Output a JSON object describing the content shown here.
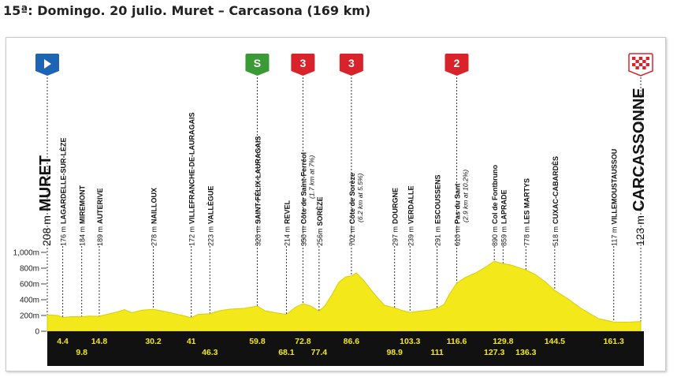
{
  "page_title": "15ª: Domingo. 20 julio. Muret – Carcasona (169 km)",
  "colors": {
    "profile_fill": "#f2e81a",
    "profile_edge": "#d8cc10",
    "ground_band": "#111111",
    "km_text": "#f2e81a",
    "start_marker": "#1e64b4",
    "finish_marker": "#d8232a",
    "sprint_marker": "#3b9a35",
    "climb_marker": "#d8232a"
  },
  "chart_data": {
    "type": "area",
    "title": "15ª: Domingo. 20 julio. Muret – Carcasona (169 km)",
    "xlabel": "",
    "ylabel": "",
    "xlim": [
      0,
      169
    ],
    "ylim": [
      0,
      1000
    ],
    "y_ticks": [
      "0",
      "200m",
      "400m",
      "600m",
      "800m",
      "1,000m"
    ],
    "y_tick_values": [
      0,
      200,
      400,
      600,
      800,
      1000
    ],
    "grid": false,
    "profile": [
      [
        0,
        208
      ],
      [
        3,
        200
      ],
      [
        4.4,
        176
      ],
      [
        7,
        185
      ],
      [
        9.8,
        184
      ],
      [
        12,
        192
      ],
      [
        14.8,
        189
      ],
      [
        17,
        215
      ],
      [
        20,
        245
      ],
      [
        22,
        275
      ],
      [
        24,
        235
      ],
      [
        27,
        268
      ],
      [
        30.2,
        278
      ],
      [
        33,
        255
      ],
      [
        36,
        225
      ],
      [
        39,
        195
      ],
      [
        41,
        172
      ],
      [
        43,
        215
      ],
      [
        46.3,
        223
      ],
      [
        49,
        260
      ],
      [
        52,
        280
      ],
      [
        56,
        290
      ],
      [
        59.8,
        320
      ],
      [
        62,
        260
      ],
      [
        65,
        235
      ],
      [
        68.1,
        214
      ],
      [
        70.5,
        300
      ],
      [
        72.8,
        350
      ],
      [
        75,
        320
      ],
      [
        77.4,
        256
      ],
      [
        79,
        320
      ],
      [
        81,
        460
      ],
      [
        83,
        620
      ],
      [
        85,
        690
      ],
      [
        86.6,
        702
      ],
      [
        88,
        740
      ],
      [
        90,
        650
      ],
      [
        93,
        480
      ],
      [
        96,
        330
      ],
      [
        98.9,
        297
      ],
      [
        101,
        265
      ],
      [
        103.3,
        239
      ],
      [
        106,
        255
      ],
      [
        109,
        270
      ],
      [
        111,
        291
      ],
      [
        113,
        340
      ],
      [
        114.5,
        470
      ],
      [
        116.6,
        610
      ],
      [
        119,
        680
      ],
      [
        122,
        740
      ],
      [
        125,
        820
      ],
      [
        127.3,
        890
      ],
      [
        128.6,
        870
      ],
      [
        129.8,
        859
      ],
      [
        132,
        840
      ],
      [
        134,
        810
      ],
      [
        136.3,
        778
      ],
      [
        139,
        720
      ],
      [
        142,
        620
      ],
      [
        144.5,
        518
      ],
      [
        148,
        420
      ],
      [
        152,
        290
      ],
      [
        157,
        160
      ],
      [
        161.3,
        117
      ],
      [
        165,
        115
      ],
      [
        169,
        123
      ]
    ],
    "towns": [
      {
        "km": 0,
        "alt": 208,
        "name": "MURET",
        "alt_label": "208 m",
        "kind": "start",
        "km_label": ""
      },
      {
        "km": 4.4,
        "alt": 176,
        "name": "LAGARDELLE-SUR-LÈZE",
        "alt_label": "176 m",
        "kind": "town",
        "km_label": "4.4",
        "km_row": "top"
      },
      {
        "km": 9.8,
        "alt": 184,
        "name": "MIREMONT",
        "alt_label": "184 m",
        "kind": "town",
        "km_label": "9.8",
        "km_row": "bottom"
      },
      {
        "km": 14.8,
        "alt": 189,
        "name": "AUTERIVE",
        "alt_label": "189 m",
        "kind": "town",
        "km_label": "14.8",
        "km_row": "top"
      },
      {
        "km": 30.2,
        "alt": 278,
        "name": "NAILLOUX",
        "alt_label": "278 m",
        "kind": "town",
        "km_label": "30.2",
        "km_row": "top"
      },
      {
        "km": 41,
        "alt": 172,
        "name": "VILLEFRANCHE-DE-LAURAGAIS",
        "alt_label": "172 m",
        "kind": "town",
        "km_label": "41",
        "km_row": "top"
      },
      {
        "km": 46.3,
        "alt": 223,
        "name": "VALLÈGUE",
        "alt_label": "223 m",
        "kind": "town",
        "km_label": "46.3",
        "km_row": "bottom"
      },
      {
        "km": 59.8,
        "alt": 320,
        "name": "SAINT-FÉLIX-LAURAGAIS",
        "alt_label": "320 m",
        "kind": "sprint",
        "km_label": "59.8",
        "km_row": "top"
      },
      {
        "km": 68.1,
        "alt": 214,
        "name": "REVEL",
        "alt_label": "214 m",
        "kind": "town",
        "km_label": "68.1",
        "km_row": "bottom"
      },
      {
        "km": 72.8,
        "alt": 350,
        "name": "Côte de Saint-Ferréol",
        "alt_label": "350 m",
        "detail": "(1.7 km at 7%)",
        "kind": "climb3",
        "km_label": "72.8",
        "km_row": "top"
      },
      {
        "km": 77.4,
        "alt": 256,
        "name": "SORÈZE",
        "alt_label": "256m",
        "kind": "town",
        "km_label": "77.4",
        "km_row": "bottom"
      },
      {
        "km": 86.6,
        "alt": 702,
        "name": "Côte de Sorèze",
        "alt_label": "702 m",
        "detail": "(6.2 km at 5.5%)",
        "kind": "climb3",
        "km_label": "86.6",
        "km_row": "top"
      },
      {
        "km": 98.9,
        "alt": 297,
        "name": "DOURGNE",
        "alt_label": "297 m",
        "kind": "town",
        "km_label": "98.9",
        "km_row": "bottom"
      },
      {
        "km": 103.3,
        "alt": 239,
        "name": "VERDALLE",
        "alt_label": "239 m",
        "kind": "town",
        "km_label": "103.3",
        "km_row": "top"
      },
      {
        "km": 111,
        "alt": 291,
        "name": "ESCOUSSENS",
        "alt_label": "291 m",
        "kind": "town",
        "km_label": "111",
        "km_row": "bottom"
      },
      {
        "km": 116.6,
        "alt": 610,
        "name": "Pas du Sant",
        "alt_label": "610 m",
        "detail": "(2.9 km at 10.2%)",
        "kind": "climb2",
        "km_label": "116.6",
        "km_row": "top"
      },
      {
        "km": 127.3,
        "alt": 890,
        "name": "Col de Fontbruno",
        "alt_label": "890 m",
        "kind": "town",
        "km_label": "127.3",
        "km_row": "bottom"
      },
      {
        "km": 129.8,
        "alt": 859,
        "name": "LAPRADE",
        "alt_label": "859 m",
        "kind": "town",
        "km_label": "129.8",
        "km_row": "top"
      },
      {
        "km": 136.3,
        "alt": 778,
        "name": "LES MARTYS",
        "alt_label": "778 m",
        "kind": "town",
        "km_label": "136.3",
        "km_row": "bottom"
      },
      {
        "km": 144.5,
        "alt": 518,
        "name": "CUXAC-CABARDÈS",
        "alt_label": "518 m",
        "kind": "town",
        "km_label": "144.5",
        "km_row": "top"
      },
      {
        "km": 161.3,
        "alt": 117,
        "name": "VILLEMOUSTAUSSOU",
        "alt_label": "117 m",
        "kind": "town",
        "km_label": "161.3",
        "km_row": "top"
      },
      {
        "km": 169,
        "alt": 123,
        "name": "CARCASSONNE",
        "alt_label": "123 m",
        "kind": "finish",
        "km_label": ""
      }
    ],
    "markers": [
      {
        "km": 0,
        "type": "start",
        "label": ""
      },
      {
        "km": 59.8,
        "type": "sprint",
        "label": "S"
      },
      {
        "km": 72.8,
        "type": "climb",
        "label": "3"
      },
      {
        "km": 86.6,
        "type": "climb",
        "label": "3"
      },
      {
        "km": 116.6,
        "type": "climb",
        "label": "2"
      },
      {
        "km": 169,
        "type": "finish",
        "label": ""
      }
    ]
  }
}
